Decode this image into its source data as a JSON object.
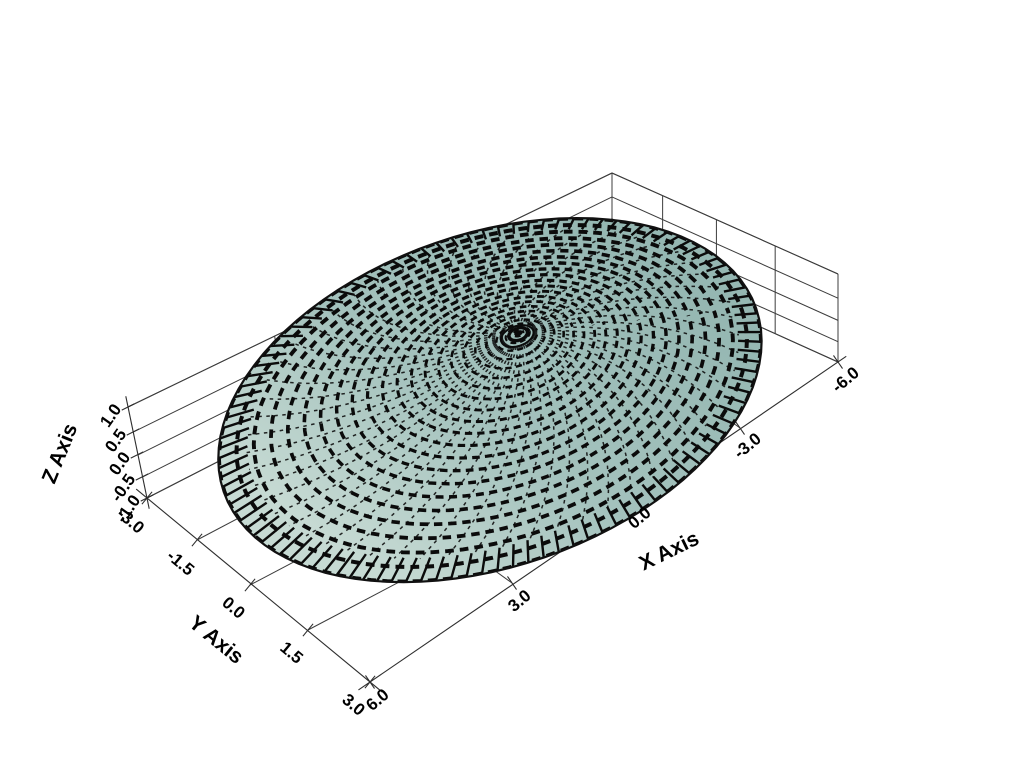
{
  "scene": {
    "background": "#ffffff",
    "line_color": "#3c3c3c",
    "mesh_color": "#0b0b0b",
    "surface_color": "#a4c2bd",
    "surface_color_dark": "#95b7b2",
    "surface_color_light": "#c6dad3",
    "outline_color": "#111111"
  },
  "chart_data": {
    "type": "surface",
    "projection": "3d",
    "title": "",
    "xlabel": "X Axis",
    "ylabel": "Y Axis",
    "zlabel": "Z Axis",
    "x_tick_labels": [
      "6.0",
      "3.0",
      "0.0",
      "-3.0",
      "-6.0"
    ],
    "y_tick_labels": [
      "-3.0",
      "-1.5",
      "0.0",
      "1.5",
      "3.0"
    ],
    "z_tick_labels": [
      "1.0",
      "0.5",
      "0.0",
      "-0.5",
      "-1.0"
    ],
    "xlim": [
      -6.0,
      6.0
    ],
    "ylim": [
      -3.0,
      3.0
    ],
    "zlim": [
      -1.0,
      1.0
    ],
    "x_axis_screen_direction": "reversed (6.0 near viewer, -6.0 far right)",
    "grid": "on (back walls: x-z wall, y-z wall, plus floor gridlines)",
    "legend": "none",
    "surface": {
      "shape": "elliptical dome spanning x in [-6,6], y in [-3,3], peak near z=1 at origin",
      "mesh": "polar grid (concentric rings and radial spokes) rendered as dark quad edges over a pale blue-grey surface, producing a moire pinwheel pattern converging at the dome peak",
      "rim": "scalloped rim with short dark radial stripes seen edge-on"
    }
  }
}
